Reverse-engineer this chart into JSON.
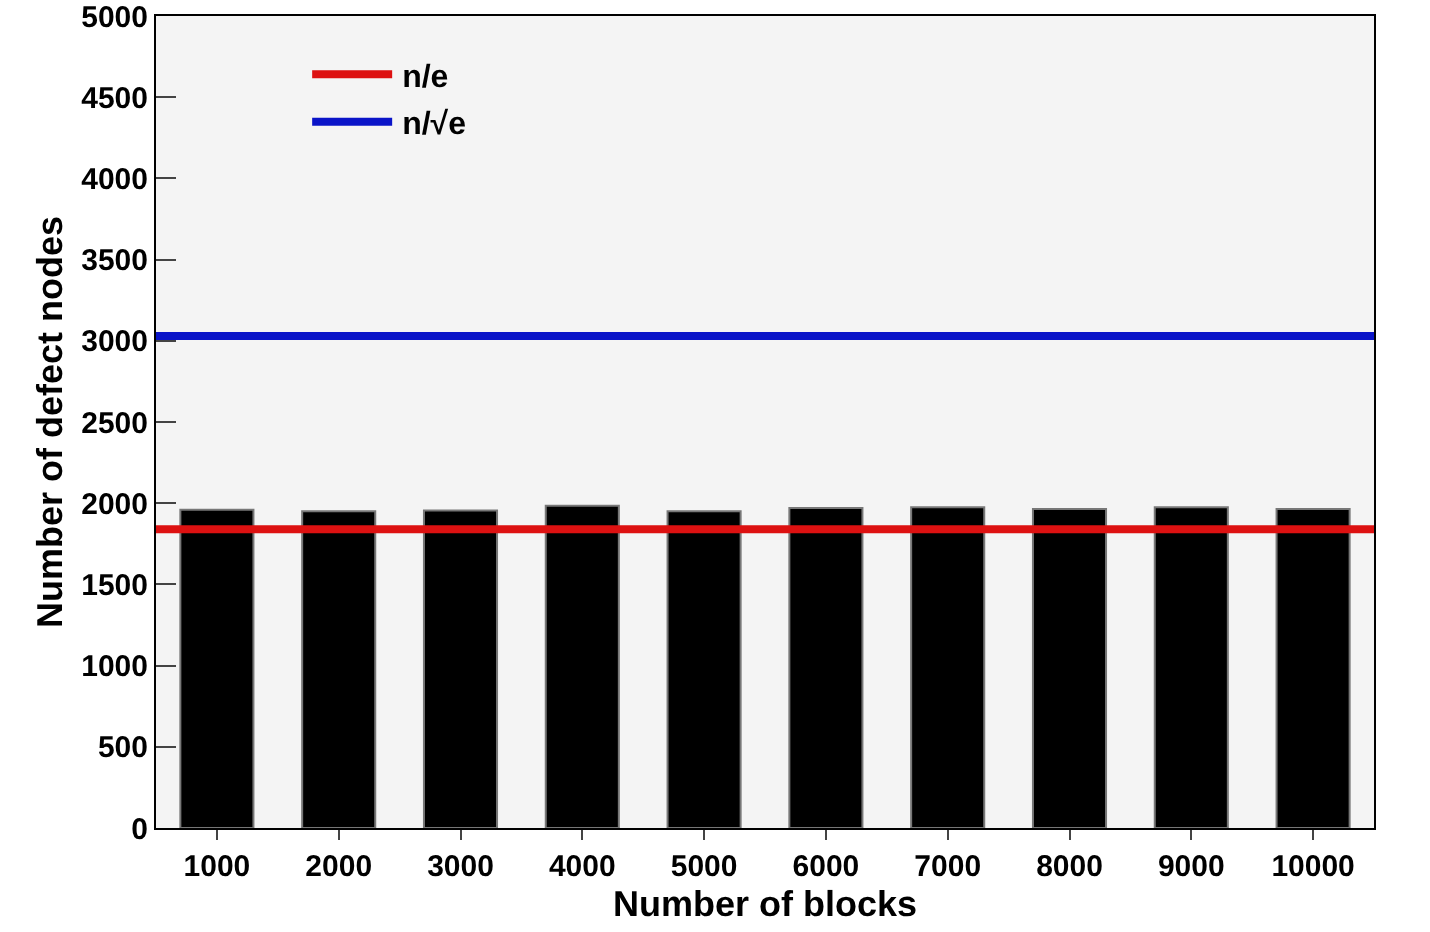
{
  "chart_data": {
    "type": "bar",
    "xlabel": "Number of blocks",
    "ylabel": "Number of defect nodes",
    "categories": [
      "1000",
      "2000",
      "3000",
      "4000",
      "5000",
      "6000",
      "7000",
      "8000",
      "9000",
      "10000"
    ],
    "values": [
      1960,
      1950,
      1955,
      1985,
      1950,
      1970,
      1975,
      1965,
      1975,
      1965
    ],
    "color": "#000000",
    "ylim": [
      0,
      5000
    ],
    "yticks": [
      0,
      500,
      1000,
      1500,
      2000,
      2500,
      3000,
      3500,
      4000,
      4500,
      5000
    ],
    "grid": false,
    "legend": "top left",
    "ref_lines": [
      {
        "axis": "y",
        "value": 1840,
        "label": "n/e",
        "color": "#dd1111"
      },
      {
        "axis": "y",
        "value": 3030,
        "label": "n/√e",
        "color": "#0a14c8"
      }
    ]
  }
}
